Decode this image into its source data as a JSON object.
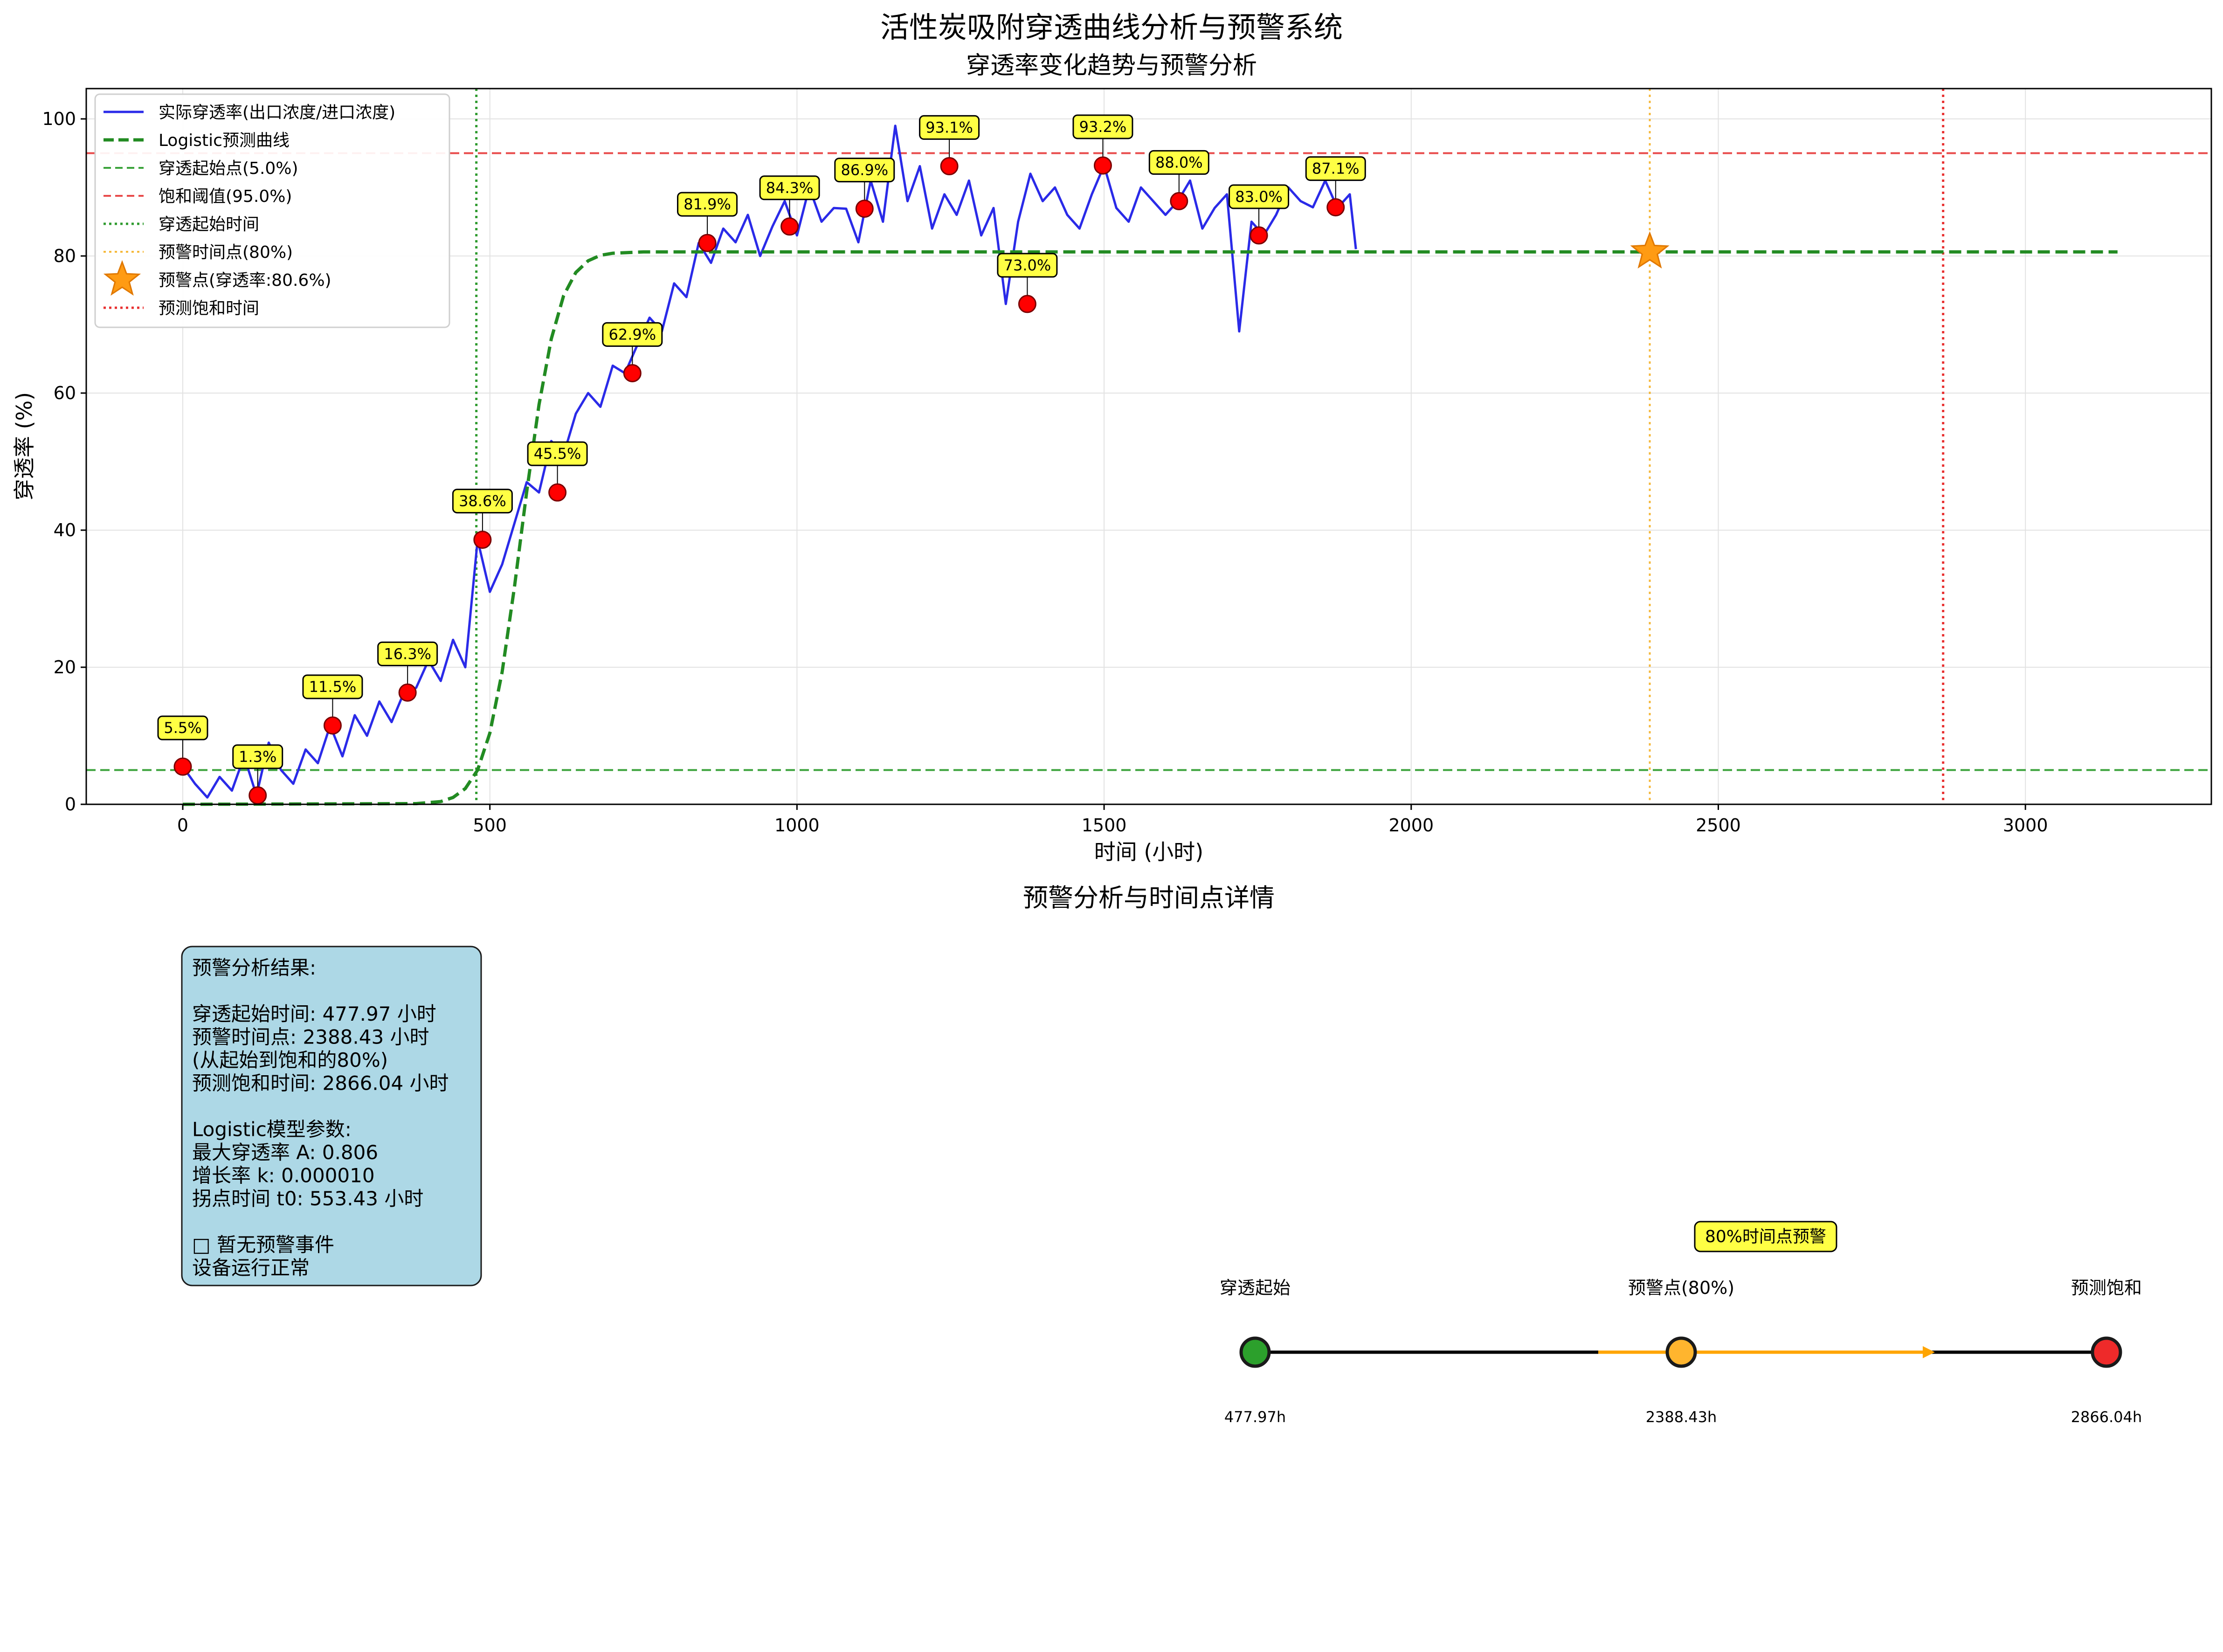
{
  "figure": {
    "title": "活性炭吸附穿透曲线分析与预警系统",
    "bottom_title": "预警分析与时间点详情"
  },
  "chart_data": {
    "type": "line",
    "title": "穿透率变化趋势与预警分析",
    "xlabel": "时间 (小时)",
    "ylabel": "穿透率 (%)",
    "xlim": [
      -155,
      3310
    ],
    "ylim": [
      0,
      105
    ],
    "xticks": [
      0,
      500,
      1000,
      1500,
      2000,
      2500,
      3000
    ],
    "yticks": [
      0,
      20,
      40,
      60,
      80,
      100
    ],
    "grid": true,
    "legend_position": "upper-left",
    "colors": {
      "actual": "#2a2ae8",
      "logistic": "#228b22",
      "start_line": "#3aa23a",
      "saturation_line": "#e84a4a",
      "start_time": "#2e9a2e",
      "warning_time": "#f5b83a",
      "warning_star": "#ff9b13",
      "saturation_time": "#e83030",
      "annotation_fill": "#ffff44",
      "marker": "#ff0000"
    },
    "legend": [
      {
        "label": "实际穿透率(出口浓度/进口浓度)",
        "style": "solid-blue"
      },
      {
        "label": "Logistic预测曲线",
        "style": "dashed-green-thick"
      },
      {
        "label": "穿透起始点(5.0%)",
        "style": "dashed-green"
      },
      {
        "label": "饱和阈值(95.0%)",
        "style": "dashed-red"
      },
      {
        "label": "穿透起始时间",
        "style": "dotted-green"
      },
      {
        "label": "预警时间点(80%)",
        "style": "dotted-orange"
      },
      {
        "label": "预警点(穿透率:80.6%)",
        "style": "star"
      },
      {
        "label": "预测饱和时间",
        "style": "dotted-red"
      }
    ],
    "series": [
      {
        "name": "实际穿透率(出口浓度/进口浓度)",
        "x": [
          0,
          20,
          40,
          60,
          80,
          100,
          120,
          140,
          160,
          180,
          200,
          220,
          240,
          260,
          280,
          300,
          320,
          340,
          360,
          380,
          400,
          420,
          440,
          460,
          480,
          500,
          520,
          540,
          560,
          580,
          600,
          620,
          640,
          660,
          680,
          700,
          720,
          740,
          760,
          780,
          800,
          820,
          840,
          860,
          880,
          900,
          920,
          940,
          960,
          980,
          1000,
          1020,
          1040,
          1060,
          1080,
          1100,
          1120,
          1140,
          1160,
          1180,
          1200,
          1220,
          1240,
          1260,
          1280,
          1300,
          1320,
          1340,
          1360,
          1380,
          1400,
          1420,
          1440,
          1460,
          1480,
          1500,
          1520,
          1540,
          1560,
          1580,
          1600,
          1620,
          1640,
          1660,
          1680,
          1700,
          1720,
          1740,
          1760,
          1780,
          1800,
          1820,
          1840,
          1860,
          1880,
          1900,
          1910
        ],
        "y": [
          5.5,
          3,
          1,
          4,
          2,
          7,
          1.3,
          9,
          5,
          3,
          8,
          6,
          11.5,
          7,
          13,
          10,
          15,
          12,
          16.3,
          17,
          21,
          18,
          24,
          20,
          38.6,
          31,
          35,
          41,
          47,
          45.5,
          53,
          51,
          57,
          60,
          58,
          64,
          62.9,
          67,
          71,
          69,
          76,
          74,
          81.9,
          79,
          84,
          82,
          86,
          80,
          84.3,
          88,
          83,
          90,
          85,
          87,
          86.9,
          82,
          91,
          85,
          99,
          88,
          93.1,
          84,
          89,
          86,
          91,
          83,
          87,
          73,
          85,
          92,
          88,
          90,
          86,
          84,
          89,
          93.2,
          87,
          85,
          90,
          88,
          86,
          88,
          91,
          84,
          87,
          89,
          69,
          85,
          83,
          86,
          90,
          88,
          87.1,
          91,
          87,
          89,
          81
        ]
      },
      {
        "name": "Logistic预测曲线",
        "x": [
          0,
          380,
          420,
          440,
          460,
          480,
          500,
          520,
          540,
          560,
          580,
          600,
          620,
          640,
          660,
          680,
          700,
          750,
          1000,
          2000,
          3150
        ],
        "y": [
          0,
          0.1,
          0.4,
          1,
          2.3,
          5,
          10.4,
          19.3,
          31.7,
          45.6,
          58.3,
          67.9,
          74.2,
          77.6,
          79.3,
          80.1,
          80.4,
          80.6,
          80.6,
          80.6,
          80.6
        ]
      }
    ],
    "reference_lines": {
      "start_level": 5.0,
      "saturation_level": 95.0,
      "start_time": 477.97,
      "warning_time": 2388.43,
      "saturation_time": 2866.04
    },
    "warning_point": {
      "x": 2388.43,
      "y": 80.6
    },
    "annotations": [
      {
        "x": 0,
        "y": 5.5,
        "label": "5.5%"
      },
      {
        "x": 122,
        "y": 1.3,
        "label": "1.3%"
      },
      {
        "x": 244,
        "y": 11.5,
        "label": "11.5%"
      },
      {
        "x": 366,
        "y": 16.3,
        "label": "16.3%"
      },
      {
        "x": 488,
        "y": 38.6,
        "label": "38.6%"
      },
      {
        "x": 610,
        "y": 45.5,
        "label": "45.5%"
      },
      {
        "x": 732,
        "y": 62.9,
        "label": "62.9%"
      },
      {
        "x": 854,
        "y": 81.9,
        "label": "81.9%"
      },
      {
        "x": 988,
        "y": 84.3,
        "label": "84.3%"
      },
      {
        "x": 1110,
        "y": 86.9,
        "label": "86.9%"
      },
      {
        "x": 1248,
        "y": 93.1,
        "label": "93.1%"
      },
      {
        "x": 1375,
        "y": 73.0,
        "label": "73.0%"
      },
      {
        "x": 1498,
        "y": 93.2,
        "label": "93.2%"
      },
      {
        "x": 1622,
        "y": 88.0,
        "label": "88.0%"
      },
      {
        "x": 1752,
        "y": 83.0,
        "label": "83.0%"
      },
      {
        "x": 1877,
        "y": 87.1,
        "label": "87.1%"
      }
    ]
  },
  "info_box": {
    "lines": [
      "预警分析结果:",
      "",
      "穿透起始时间: 477.97 小时",
      "预警时间点: 2388.43 小时",
      "(从起始到饱和的80%)",
      "预测饱和时间: 2866.04 小时",
      "",
      "Logistic模型参数:",
      "最大穿透率 A: 0.806",
      "增长率 k: 0.000010",
      "拐点时间 t0: 553.43 小时",
      "",
      "□ 暂无预警事件",
      "设备运行正常"
    ],
    "fill": "#add8e6"
  },
  "timeline": {
    "callout": "80%时间点预警",
    "points": [
      {
        "label": "穿透起始",
        "value": "477.97h",
        "color": "#2ca02c"
      },
      {
        "label": "预警点(80%)",
        "value": "2388.43h",
        "color": "#ffb52e"
      },
      {
        "label": "预测饱和",
        "value": "2866.04h",
        "color": "#ee2a2a"
      }
    ]
  }
}
